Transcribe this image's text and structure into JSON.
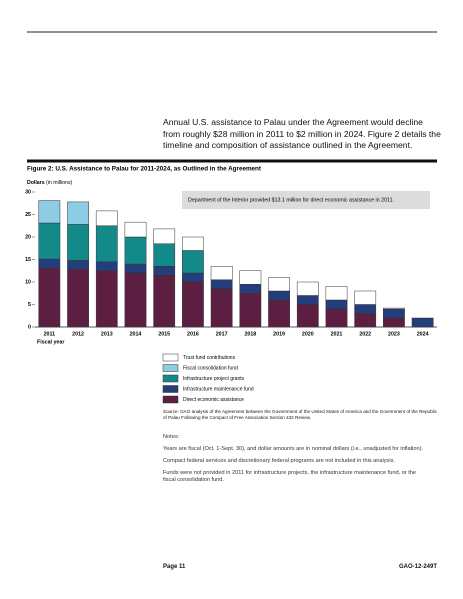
{
  "document": {
    "paragraph": "Annual U.S. assistance to Palau under the Agreement would decline from roughly $28 million in 2011 to $2 million in 2024. Figure 2 details the timeline and composition of assistance outlined in the Agreement.",
    "source": "Source: GAO analysis of the Agreement between the Government of the United States of America and the Government of the Republic of Palau Following the Compact of Free Association Section 432 Review.",
    "notes": [
      "Notes:",
      "Years are fiscal (Oct. 1-Sept. 30), and dollar amounts are in nominal dollars (i.e., unadjusted for inflation).",
      "Compact federal services and discretionary federal programs are not included in this analysis.",
      "Funds were not provided in 2011 for infrastructure projects, the infrastructure maintenance fund, or the fiscal consolidation fund."
    ],
    "page": "Page 11",
    "report": "GAO-12-249T"
  },
  "chart_data": {
    "type": "stacked-bar",
    "title": "Figure 2: U.S. Assistance to Palau for 2011-2024, as Outlined in the Agreement",
    "y_label": "Dollars",
    "y_unit": "(in millions)",
    "x_label": "Fiscal year",
    "annotation": "Department of the Interior provided $13.1 million for direct economic assistance in 2011.",
    "categories": [
      "2011",
      "2012",
      "2013",
      "2014",
      "2015",
      "2016",
      "2017",
      "2018",
      "2019",
      "2020",
      "2021",
      "2022",
      "2023",
      "2024"
    ],
    "series": [
      {
        "name": "Direct economic assistance",
        "color": "#5c1f42",
        "values": [
          13.1,
          12.8,
          12.5,
          12,
          11.5,
          10,
          8.5,
          7.5,
          6,
          5,
          4,
          3,
          2,
          0
        ]
      },
      {
        "name": "Infrastructure maintenance fund",
        "color": "#233e7a",
        "values": [
          2,
          2,
          2,
          2,
          2,
          2,
          2,
          2,
          2,
          2,
          2,
          2,
          2,
          2
        ]
      },
      {
        "name": "Infrastructure project grants",
        "color": "#14898a",
        "values": [
          8,
          8,
          8,
          6,
          5,
          5,
          0,
          0,
          0,
          0,
          0,
          0,
          0,
          0
        ]
      },
      {
        "name": "Fiscal consolidation fund",
        "color": "#8ecbe5",
        "values": [
          5,
          5,
          0,
          0,
          0,
          0,
          0,
          0,
          0,
          0,
          0,
          0,
          0,
          0
        ]
      },
      {
        "name": "Trust fund contributions",
        "color": "#ffffff",
        "values": [
          0,
          0,
          3.3,
          3.3,
          3.3,
          3,
          3,
          3,
          3,
          3,
          3,
          3,
          0.2,
          0
        ]
      }
    ],
    "ylim": [
      0,
      30
    ],
    "yticks": [
      0,
      5,
      10,
      15,
      20,
      25,
      30
    ]
  }
}
